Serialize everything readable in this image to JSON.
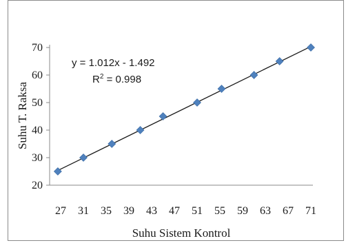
{
  "chart_data": {
    "type": "scatter",
    "xlabel": "Suhu Sistem Kontrol",
    "ylabel": "Suhu T. Raksa",
    "x_ticks": [
      "27",
      "31",
      "35",
      "39",
      "43",
      "47",
      "51",
      "55",
      "59",
      "63",
      "67",
      "71"
    ],
    "y_ticks": [
      "20",
      "30",
      "40",
      "50",
      "60",
      "70"
    ],
    "xlim": [
      27,
      71
    ],
    "ylim": [
      20,
      70
    ],
    "grid": false,
    "series": [
      {
        "points": [
          {
            "x": 26.5,
            "y": 25
          },
          {
            "x": 31,
            "y": 30
          },
          {
            "x": 36,
            "y": 35
          },
          {
            "x": 41,
            "y": 40
          },
          {
            "x": 45,
            "y": 45
          },
          {
            "x": 51,
            "y": 50
          },
          {
            "x": 55.3,
            "y": 55
          },
          {
            "x": 61,
            "y": 60
          },
          {
            "x": 65.5,
            "y": 65
          },
          {
            "x": 71,
            "y": 70
          }
        ],
        "color": "#4f81bd",
        "marker": "diamond"
      }
    ],
    "trendline": {
      "slope": 1.012,
      "intercept": -1.492,
      "color": "#1a1a1a"
    },
    "annotations": {
      "equation": "y = 1.012x - 1.492",
      "r2_prefix": "R",
      "r2_exp": "2",
      "r2_suffix": " = 0.998"
    }
  }
}
